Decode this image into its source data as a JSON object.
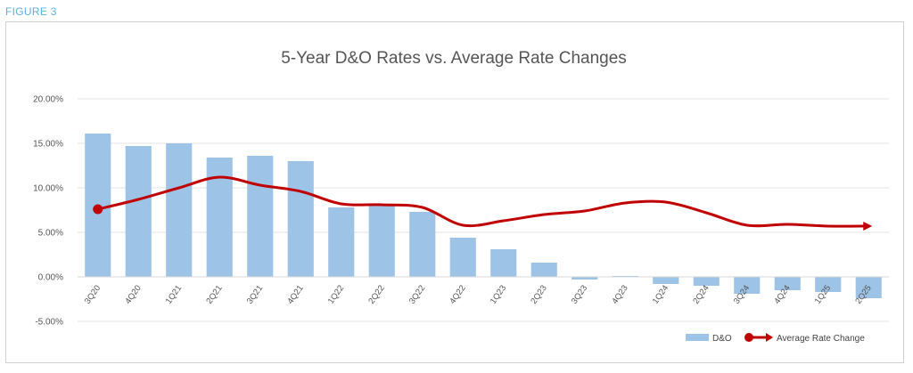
{
  "figure_label": "FIGURE 3",
  "chart_data": {
    "type": "bar+line",
    "title": "5-Year D&O Rates vs. Average Rate Changes",
    "categories": [
      "3Q20",
      "4Q20",
      "1Q21",
      "2Q21",
      "3Q21",
      "4Q21",
      "1Q22",
      "2Q22",
      "3Q22",
      "4Q22",
      "1Q23",
      "2Q23",
      "3Q23",
      "4Q23",
      "1Q24",
      "2Q24",
      "3Q24",
      "4Q24",
      "1Q25",
      "2Q25"
    ],
    "series": [
      {
        "name": "D&O",
        "type": "bar",
        "color": "#9dc3e6",
        "values": [
          16.1,
          14.7,
          15.0,
          13.4,
          13.6,
          13.0,
          7.8,
          8.0,
          7.3,
          4.4,
          3.1,
          1.6,
          -0.3,
          0.1,
          -0.8,
          -1.0,
          -1.9,
          -1.5,
          -1.7,
          -2.4
        ]
      },
      {
        "name": "Average Rate Change",
        "type": "line",
        "color": "#c00000",
        "values": [
          7.6,
          8.7,
          10.0,
          11.2,
          10.3,
          9.6,
          8.2,
          8.1,
          7.8,
          5.8,
          6.3,
          7.0,
          7.4,
          8.3,
          8.4,
          7.2,
          5.8,
          5.9,
          5.7,
          5.7
        ]
      }
    ],
    "yticks": [
      "20.00%",
      "15.00%",
      "10.00%",
      "5.00%",
      "0.00%",
      "-5.00%"
    ],
    "ylim": [
      -5,
      20
    ],
    "grid": true,
    "legend": "bottom-right"
  }
}
